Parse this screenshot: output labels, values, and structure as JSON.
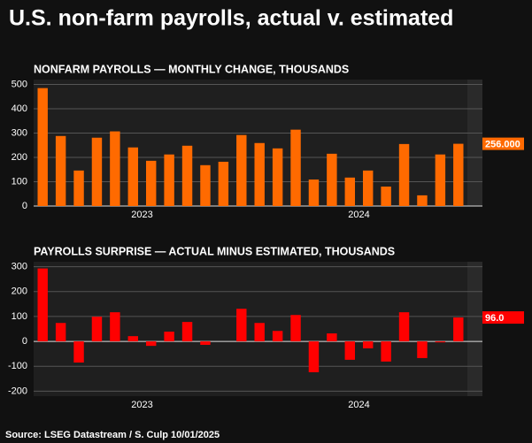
{
  "title": "U.S. non-farm payrolls, actual v. estimated",
  "source": "Source: LSEG Datastream / S. Culp 10/01/2025",
  "chart_data": [
    {
      "type": "bar",
      "title": "NONFARM PAYROLLS — MONTHLY CHANGE, THOUSANDS",
      "categories": [
        null,
        null,
        null,
        null,
        null,
        null,
        null,
        null,
        null,
        null,
        null,
        null,
        null,
        null,
        null,
        null,
        null,
        null,
        null,
        null,
        null,
        null,
        null,
        null
      ],
      "x_groups": [
        "2023",
        "2024"
      ],
      "values": [
        485,
        288,
        146,
        281,
        307,
        241,
        186,
        212,
        248,
        168,
        182,
        292,
        259,
        237,
        314,
        109,
        215,
        117,
        146,
        80,
        255,
        44,
        212,
        256
      ],
      "last_value_label": "256.000",
      "color": "#ff6a00",
      "ylim": [
        0,
        520
      ],
      "yticks": [
        0,
        100,
        200,
        300,
        400,
        500
      ],
      "grid": true
    },
    {
      "type": "bar",
      "title": "PAYROLLS SURPRISE — ACTUAL MINUS ESTIMATED, THOUSANDS",
      "categories": [
        null,
        null,
        null,
        null,
        null,
        null,
        null,
        null,
        null,
        null,
        null,
        null,
        null,
        null,
        null,
        null,
        null,
        null,
        null,
        null,
        null,
        null,
        null,
        null
      ],
      "x_groups": [
        "2023",
        "2024"
      ],
      "values": [
        293,
        74,
        -85,
        99,
        117,
        21,
        -18,
        39,
        78,
        -14,
        0,
        131,
        74,
        42,
        106,
        -124,
        32,
        -74,
        -28,
        -81,
        117,
        -67,
        -4,
        96
      ],
      "last_value_label": "96.0",
      "color": "#ff0000",
      "ylim": [
        -220,
        320
      ],
      "yticks": [
        -200,
        -100,
        0,
        100,
        200,
        300
      ],
      "grid": true
    }
  ]
}
